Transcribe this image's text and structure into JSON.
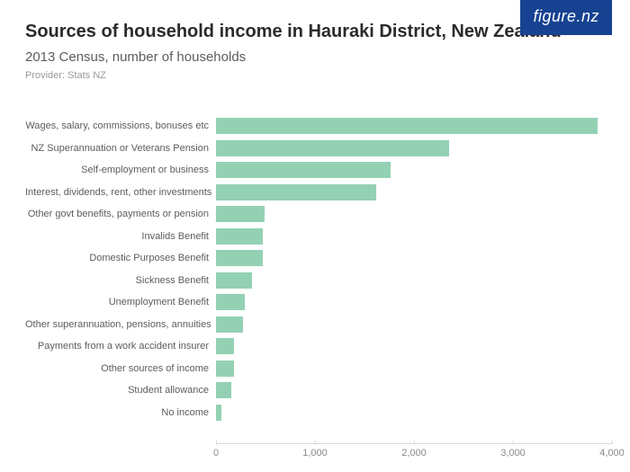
{
  "logo": "figure.nz",
  "title": "Sources of household income in Hauraki District, New Zealand",
  "subtitle": "2013 Census, number of households",
  "provider": "Provider: Stats NZ",
  "chart": {
    "type": "bar-horizontal",
    "bar_color": "#94d1b4",
    "background_color": "#ffffff",
    "label_color": "#5c5c5c",
    "axis_color": "#d8d8d8",
    "tick_label_color": "#8a8a8a",
    "title_fontsize": 20,
    "subtitle_fontsize": 15,
    "label_fontsize": 11,
    "xmax": 4000,
    "xticks": [
      0,
      1000,
      2000,
      3000,
      4000
    ],
    "xtick_labels": [
      "0",
      "1,000",
      "2,000",
      "3,000",
      "4,000"
    ],
    "categories": [
      "Wages, salary, commissions, bonuses etc",
      "NZ Superannuation or Veterans Pension",
      "Self-employment or business",
      "Interest, dividends, rent, other investments",
      "Other govt benefits, payments or pension",
      "Invalids Benefit",
      "Domestic Purposes Benefit",
      "Sickness Benefit",
      "Unemployment Benefit",
      "Other superannuation, pensions, annuities",
      "Payments from a work accident insurer",
      "Other sources of income",
      "Student allowance",
      "No income"
    ],
    "values": [
      3850,
      2350,
      1760,
      1620,
      490,
      470,
      470,
      360,
      290,
      270,
      180,
      180,
      150,
      50
    ]
  }
}
